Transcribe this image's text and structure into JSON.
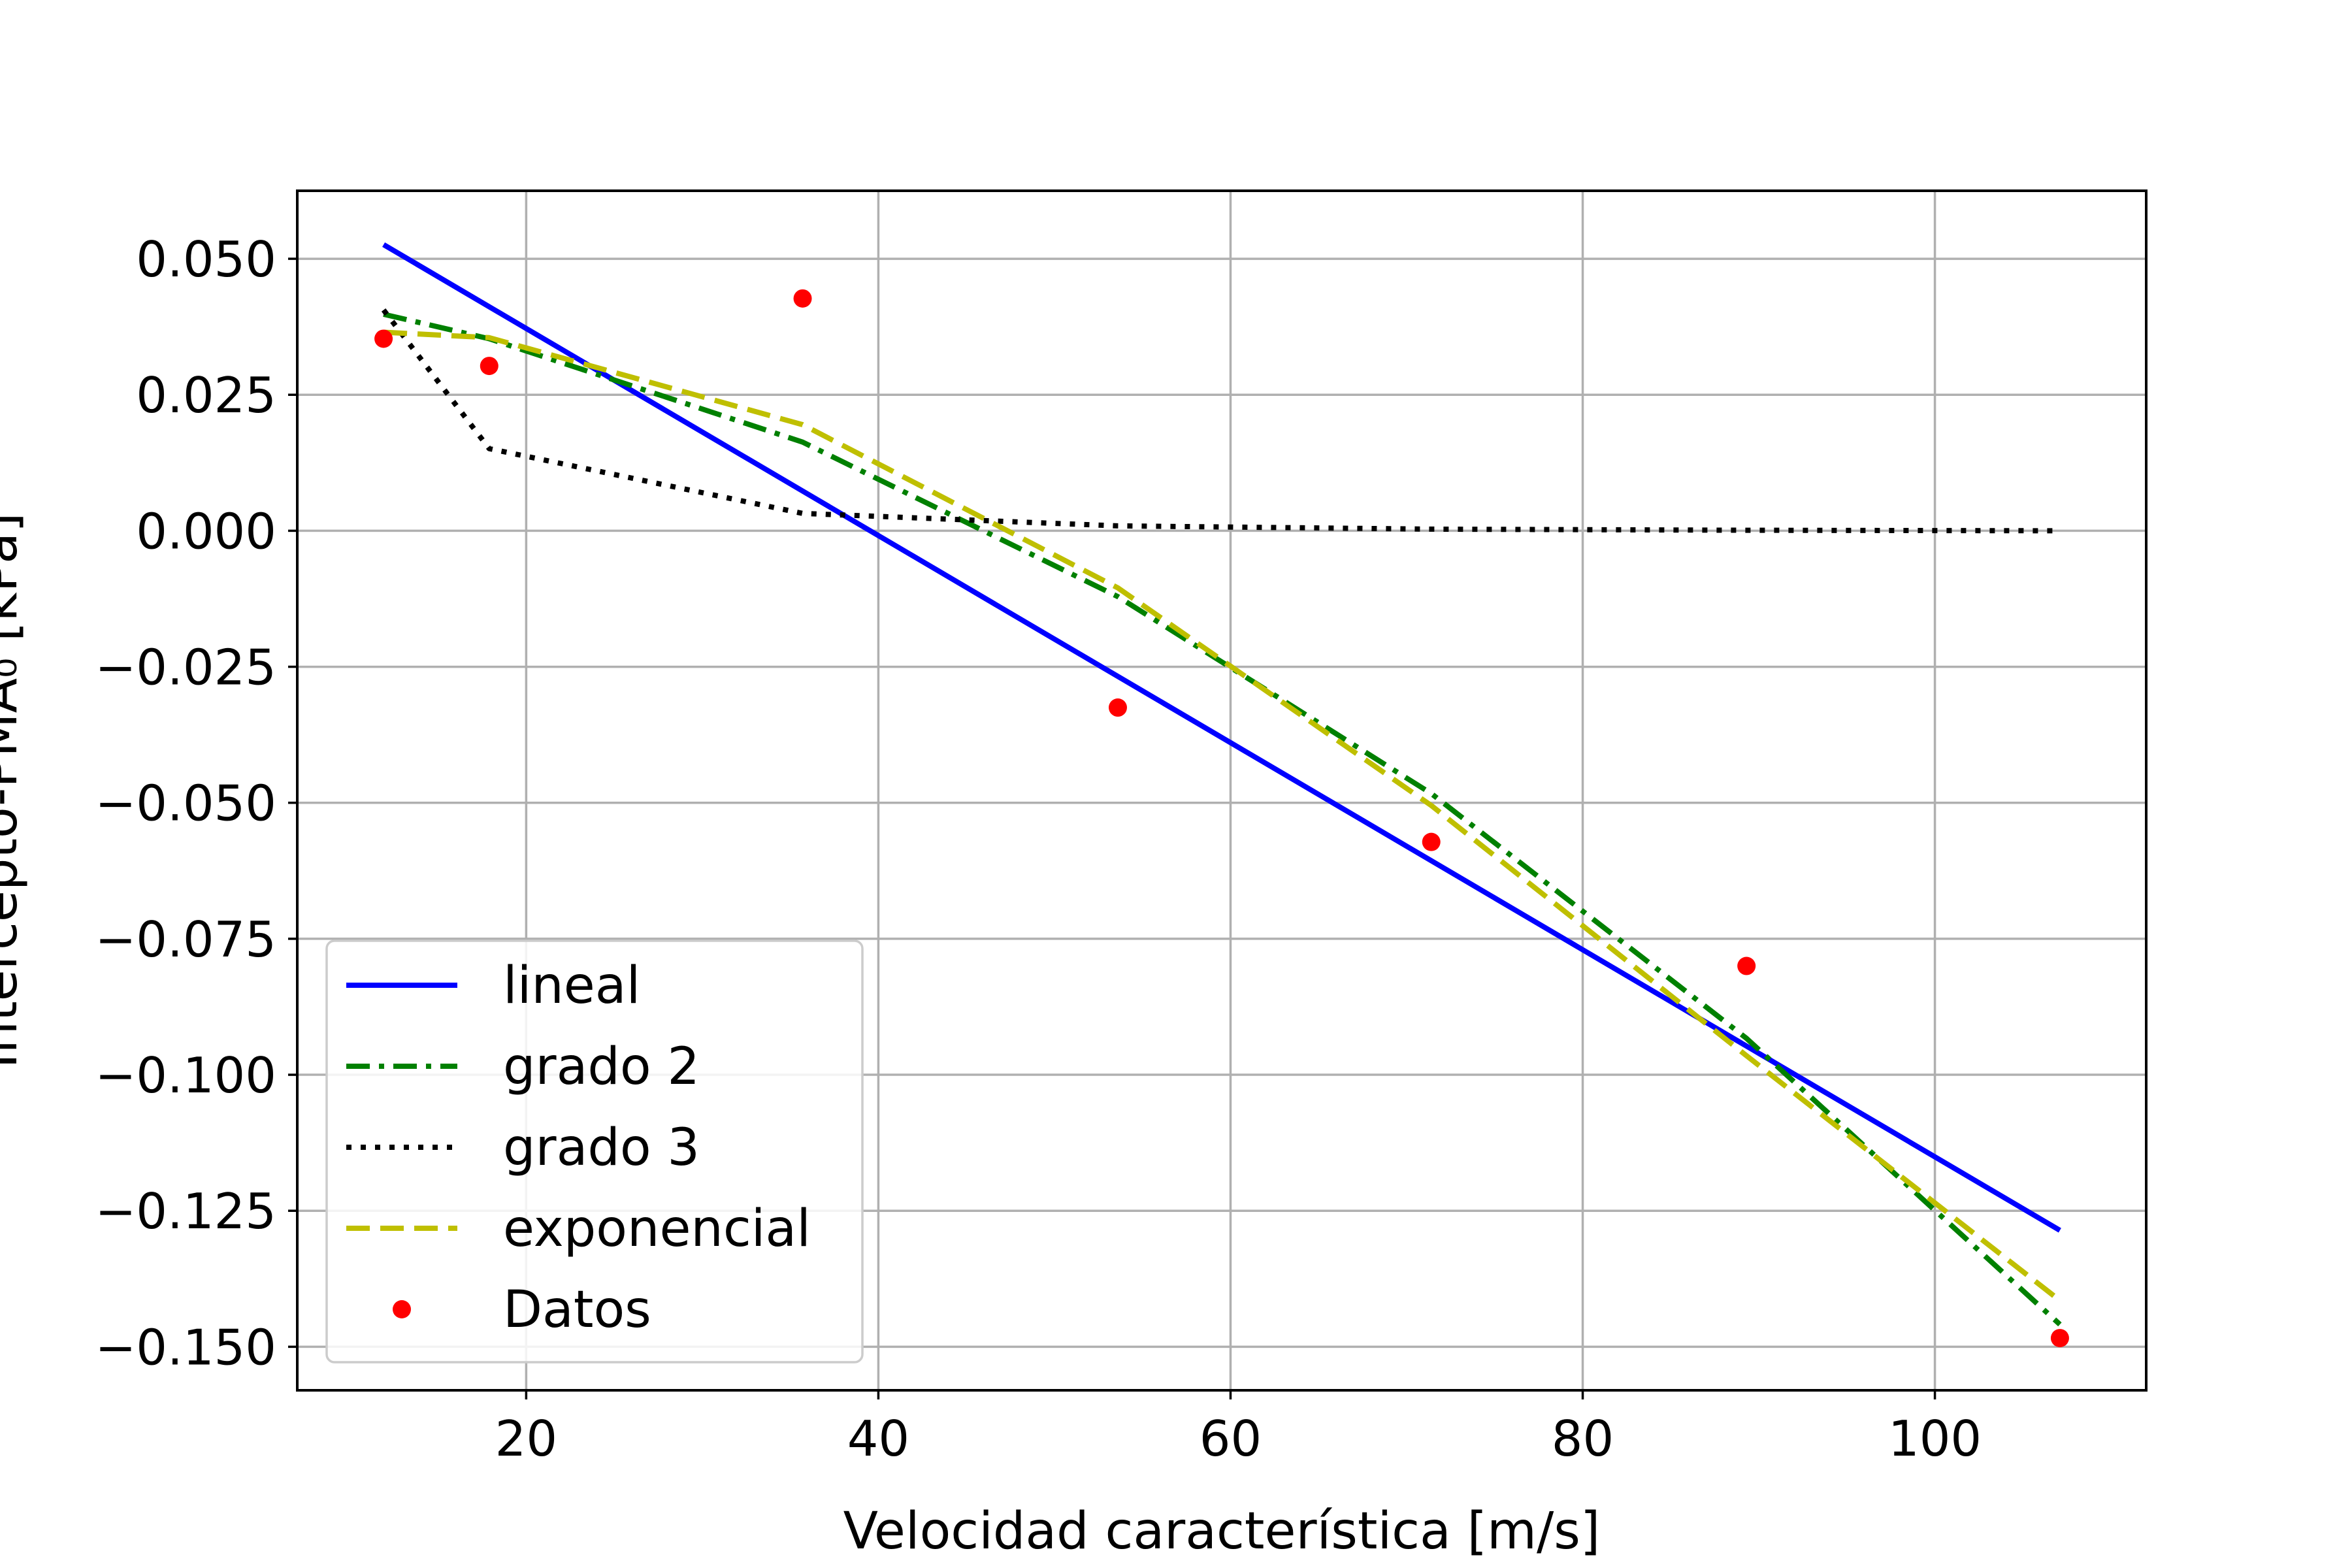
{
  "chart_data": {
    "type": "line",
    "title": "",
    "xlabel": "Velocidad característica [m/s]",
    "ylabel": "Intercepto-PMA₀ [kPa]",
    "xlim": [
      7,
      112
    ],
    "ylim": [
      -0.158,
      0.0625
    ],
    "xticks": [
      20,
      40,
      60,
      80,
      100
    ],
    "xtick_labels": [
      "20",
      "40",
      "60",
      "80",
      "100"
    ],
    "yticks": [
      0.05,
      0.025,
      0.0,
      -0.025,
      -0.05,
      -0.075,
      -0.1,
      -0.125,
      -0.15
    ],
    "ytick_labels": [
      "0.050",
      "0.025",
      "0.000",
      "−0.025",
      "−0.050",
      "−0.075",
      "−0.100",
      "−0.125",
      "−0.150"
    ],
    "grid": true,
    "legend_position": "lower-left",
    "series": [
      {
        "name": "lineal",
        "style": "solid",
        "color": "#0000ff",
        "x": [
          11.9,
          107.1
        ],
        "y": [
          0.0526,
          -0.1286
        ]
      },
      {
        "name": "grado 2",
        "style": "dashdot",
        "color": "#008000",
        "x": [
          11.9,
          17.9,
          35.7,
          53.6,
          71.4,
          89.3,
          107.1
        ],
        "y": [
          0.0398,
          0.0353,
          0.0163,
          -0.0121,
          -0.0483,
          -0.0933,
          -0.1459
        ]
      },
      {
        "name": "grado 3",
        "style": "dotted",
        "color": "#000000",
        "x": [
          11.9,
          17.9,
          35.7,
          53.6,
          71.4,
          89.3,
          107.1
        ],
        "y": [
          0.0406,
          0.0151,
          0.0032,
          0.0009,
          0.0003,
          0.0001,
          0.0
        ]
      },
      {
        "name": "exponencial",
        "style": "dashed",
        "color": "#bfbf00",
        "x": [
          11.9,
          17.9,
          35.7,
          53.6,
          71.4,
          89.3,
          107.1
        ],
        "y": [
          0.0365,
          0.0355,
          0.0195,
          -0.0105,
          -0.0505,
          -0.0965,
          -0.1415
        ]
      }
    ],
    "scatter": {
      "name": "Datos",
      "color": "#ff0000",
      "x": [
        11.9,
        17.9,
        35.7,
        53.6,
        71.4,
        89.3,
        107.1
      ],
      "y": [
        0.0353,
        0.0303,
        0.0427,
        -0.0325,
        -0.0572,
        -0.08,
        -0.1484
      ]
    }
  }
}
